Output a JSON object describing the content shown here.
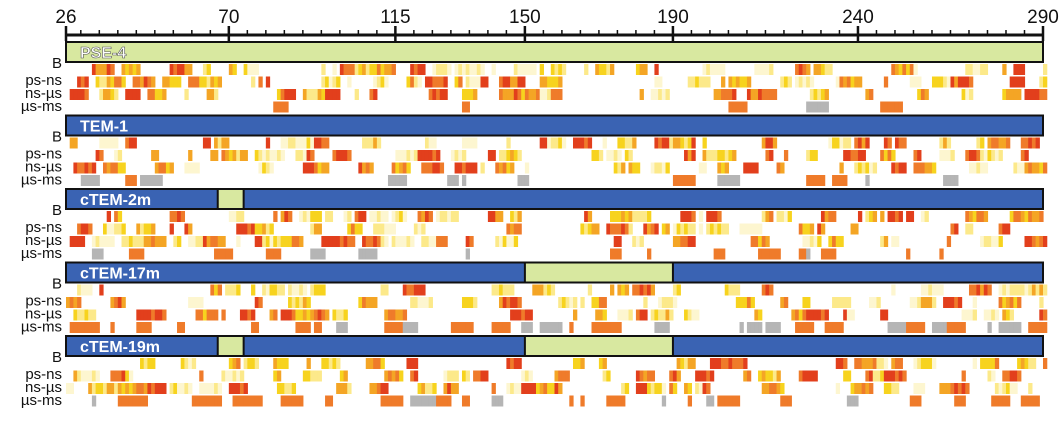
{
  "axis": {
    "ticks": [
      "26",
      "70",
      "115",
      "150",
      "190",
      "240",
      "290"
    ],
    "range": [
      26,
      290
    ]
  },
  "row_labels": [
    "B",
    "ps-ns",
    "ns-µs",
    "µs-ms"
  ],
  "colors": {
    "blue": "#3a63b3",
    "green": "#d8e8a0",
    "hot": [
      "#fdf6d0",
      "#fce98a",
      "#f7d31e",
      "#f4a525",
      "#ef7b2a",
      "#e23f1c"
    ],
    "gray": "#b5b5b5"
  },
  "proteins": [
    {
      "name": "PSE-4",
      "segments": [
        {
          "from": 26,
          "to": 290,
          "color": "green"
        }
      ],
      "seed": 3,
      "density": [
        0.45,
        0.55,
        0.45,
        0.06
      ]
    },
    {
      "name": "TEM-1",
      "segments": [
        {
          "from": 26,
          "to": 290,
          "color": "blue"
        }
      ],
      "seed": 11,
      "density": [
        0.45,
        0.5,
        0.5,
        0.1
      ]
    },
    {
      "name": "cTEM-2m",
      "segments": [
        {
          "from": 26,
          "to": 67,
          "color": "blue"
        },
        {
          "from": 67,
          "to": 74,
          "color": "green"
        },
        {
          "from": 74,
          "to": 290,
          "color": "blue"
        }
      ],
      "seed": 19,
      "density": [
        0.45,
        0.5,
        0.5,
        0.2
      ]
    },
    {
      "name": "cTEM-17m",
      "segments": [
        {
          "from": 26,
          "to": 150,
          "color": "blue"
        },
        {
          "from": 150,
          "to": 190,
          "color": "green"
        },
        {
          "from": 190,
          "to": 290,
          "color": "blue"
        }
      ],
      "seed": 27,
      "density": [
        0.4,
        0.5,
        0.5,
        0.45
      ]
    },
    {
      "name": "cTEM-19m",
      "segments": [
        {
          "from": 26,
          "to": 67,
          "color": "blue"
        },
        {
          "from": 67,
          "to": 74,
          "color": "green"
        },
        {
          "from": 74,
          "to": 150,
          "color": "blue"
        },
        {
          "from": 150,
          "to": 190,
          "color": "green"
        },
        {
          "from": 190,
          "to": 290,
          "color": "blue"
        }
      ],
      "seed": 41,
      "density": [
        0.35,
        0.5,
        0.55,
        0.45
      ]
    }
  ]
}
